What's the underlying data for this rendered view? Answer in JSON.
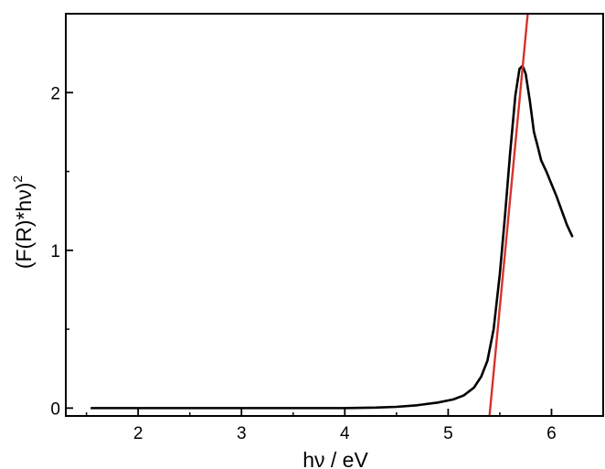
{
  "chart_data": {
    "type": "line",
    "title": "",
    "xlabel": "hν / eV",
    "ylabel": "(F(R)*hν)",
    "ylabel_superscript": "2",
    "xlim": [
      1.3,
      6.5
    ],
    "ylim": [
      -0.05,
      2.5
    ],
    "x_ticks": [
      2,
      3,
      4,
      5,
      6
    ],
    "x_tick_labels": [
      "2",
      "3",
      "4",
      "5",
      "6"
    ],
    "y_ticks": [
      0,
      1,
      2
    ],
    "y_tick_labels": [
      "0",
      "1",
      "2"
    ],
    "grid": false,
    "legend": "none",
    "series": [
      {
        "color": "#000000",
        "x": [
          1.55,
          2.0,
          2.5,
          3.0,
          3.5,
          4.0,
          4.3,
          4.5,
          4.7,
          4.9,
          5.05,
          5.15,
          5.25,
          5.32,
          5.38,
          5.44,
          5.5,
          5.55,
          5.6,
          5.65,
          5.69,
          5.72,
          5.75,
          5.79,
          5.83,
          5.87,
          5.9,
          5.95,
          6.0,
          6.05,
          6.1,
          6.15,
          6.2
        ],
        "y": [
          0.0,
          0.0,
          0.0,
          0.0,
          0.0,
          0.0,
          0.003,
          0.008,
          0.018,
          0.035,
          0.055,
          0.08,
          0.13,
          0.2,
          0.3,
          0.5,
          0.85,
          1.22,
          1.62,
          1.98,
          2.15,
          2.17,
          2.12,
          1.95,
          1.75,
          1.65,
          1.57,
          1.5,
          1.42,
          1.34,
          1.25,
          1.16,
          1.09
        ]
      },
      {
        "color": "#d6332d",
        "x": [
          5.4,
          5.77
        ],
        "y": [
          -0.05,
          2.5
        ]
      }
    ]
  }
}
